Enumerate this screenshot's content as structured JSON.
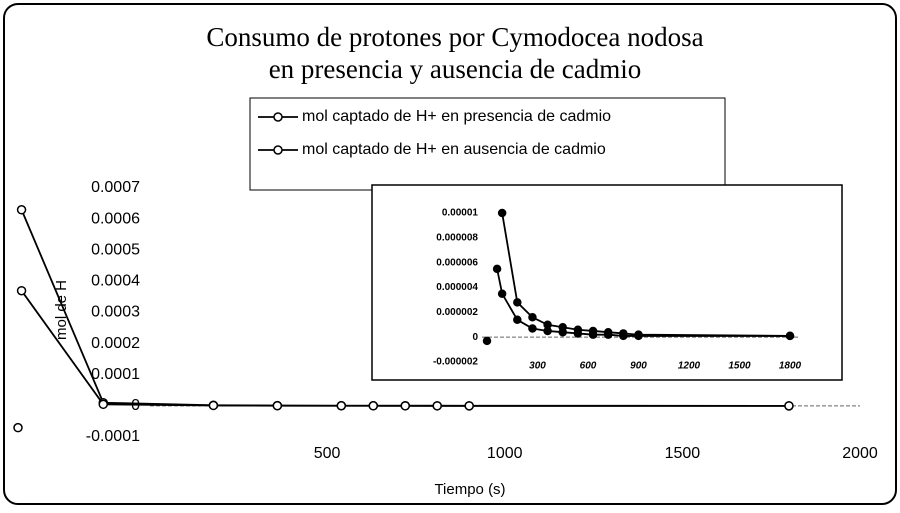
{
  "chart_data": [
    {
      "type": "line",
      "title": [
        "Consumo de protones por Cymodocea nodosa",
        "en presencia y ausencia de cadmio"
      ],
      "x_label": "Tiempo (s)",
      "y_label": "mol de H",
      "x": [
        -370,
        -360,
        -130,
        180,
        360,
        540,
        630,
        720,
        810,
        900,
        1800
      ],
      "series": [
        {
          "name": "mol captado de H+ en presencia de cadmio",
          "color": "#000000",
          "values": [
            null,
            0.00063,
            1e-05,
            2e-06,
            1e-06,
            5e-07,
            4e-07,
            3e-07,
            2e-07,
            2e-07,
            1e-07
          ]
        },
        {
          "name": "mol captado de H+ en ausencia de cadmio",
          "color": "#000000",
          "values": [
            null,
            0.00037,
            5e-06,
            1.4e-06,
            5e-07,
            4e-07,
            3e-07,
            2e-07,
            2e-07,
            1e-07,
            1e-07
          ]
        },
        {
          "color": "#000000",
          "values": [
            -7e-05,
            null,
            null,
            null,
            null,
            null,
            null,
            null,
            null,
            null,
            null
          ]
        }
      ],
      "xlim": [
        -370,
        2000
      ],
      "xticks": [
        500,
        1000,
        1500,
        2000
      ],
      "ylim": [
        -0.0001,
        0.0007
      ],
      "yticks": [
        -0.0001,
        0,
        0.0001,
        0.0002,
        0.0003,
        0.0004,
        0.0005,
        0.0006,
        0.0007
      ]
    },
    {
      "type": "line",
      "x": [
        0,
        60,
        90,
        180,
        270,
        360,
        450,
        540,
        630,
        720,
        810,
        900,
        1800
      ],
      "series": [
        {
          "color": "#000000",
          "values": [
            null,
            null,
            1e-05,
            2.8e-06,
            1.6e-06,
            1e-06,
            8e-07,
            6e-07,
            5e-07,
            4e-07,
            3e-07,
            2e-07,
            1e-07
          ]
        },
        {
          "color": "#000000",
          "values": [
            null,
            5.5e-06,
            3.5e-06,
            1.4e-06,
            7e-07,
            5e-07,
            4e-07,
            3e-07,
            2e-07,
            2e-07,
            1e-07,
            1e-07,
            1e-07
          ]
        },
        {
          "color": "#000000",
          "values": [
            -3e-07,
            null,
            null,
            null,
            null,
            null,
            null,
            null,
            null,
            null,
            null,
            null,
            null
          ]
        }
      ],
      "xlim": [
        0,
        1800
      ],
      "xticks": [
        300,
        600,
        900,
        1200,
        1500,
        1800
      ],
      "ylim": [
        -2e-06,
        1e-05
      ],
      "yticks": [
        -2e-06,
        0,
        2e-06,
        4e-06,
        6e-06,
        8e-06,
        1e-05
      ]
    }
  ]
}
